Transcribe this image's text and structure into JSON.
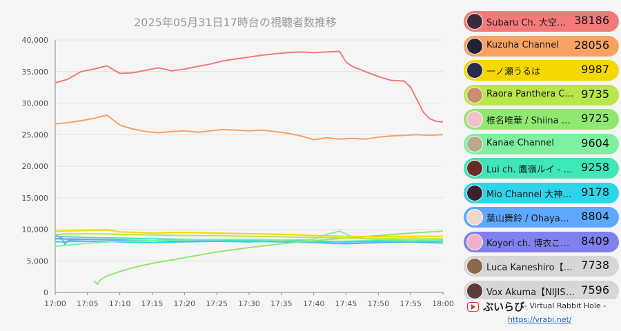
{
  "chart_data": {
    "type": "line",
    "title": "2025年05月31日17時台の視聴者数推移",
    "x_ticks": [
      "17:00",
      "17:05",
      "17:10",
      "17:15",
      "17:20",
      "17:25",
      "17:30",
      "17:35",
      "17:40",
      "17:45",
      "17:50",
      "17:55",
      "18:00"
    ],
    "xlim": [
      0,
      60
    ],
    "ylim": [
      0,
      40000
    ],
    "y_ticks": [
      0,
      5000,
      10000,
      15000,
      20000,
      25000,
      30000,
      35000,
      40000
    ],
    "y_tick_labels": [
      "0",
      "5,000",
      "10,000",
      "15,000",
      "20,000",
      "25,000",
      "30,000",
      "35,000",
      "40,000"
    ],
    "grid": true,
    "legend_position": "right",
    "series": [
      {
        "name": "Subaru Ch. 大空スバル",
        "color": "#f47a7a",
        "x": [
          0,
          2,
          4,
          6,
          8,
          10,
          12,
          14,
          16,
          18,
          20,
          22,
          24,
          26,
          28,
          30,
          32,
          34,
          36,
          38,
          40,
          42,
          44,
          45,
          46,
          48,
          50,
          52,
          54,
          55,
          56,
          57,
          58,
          59,
          60
        ],
        "y": [
          33200,
          33800,
          35000,
          35400,
          35900,
          34700,
          34800,
          35200,
          35600,
          35100,
          35400,
          35800,
          36200,
          36700,
          37000,
          37300,
          37600,
          37800,
          38000,
          38100,
          38000,
          38100,
          38200,
          36500,
          35800,
          35000,
          34200,
          33600,
          33500,
          32500,
          30500,
          28500,
          27500,
          27100,
          27000
        ]
      },
      {
        "name": "Kuzuha Channel",
        "color": "#f9a263",
        "x": [
          0,
          2,
          4,
          6,
          8,
          10,
          12,
          14,
          16,
          18,
          20,
          22,
          24,
          26,
          28,
          30,
          32,
          34,
          36,
          38,
          40,
          42,
          44,
          46,
          48,
          50,
          52,
          54,
          56,
          58,
          60
        ],
        "y": [
          26700,
          26900,
          27200,
          27600,
          28100,
          26500,
          25900,
          25500,
          25300,
          25500,
          25600,
          25400,
          25600,
          25800,
          25700,
          25600,
          25700,
          25500,
          25200,
          24800,
          24200,
          24500,
          24300,
          24400,
          24300,
          24600,
          24800,
          24900,
          25000,
          24900,
          25000
        ]
      },
      {
        "name": "一ノ瀬うるは",
        "color": "#f5d800",
        "x": [
          0,
          5,
          8,
          10,
          15,
          20,
          25,
          30,
          35,
          40,
          45,
          50,
          55,
          60
        ],
        "y": [
          9700,
          9800,
          9900,
          9600,
          9400,
          9500,
          9400,
          9300,
          9200,
          9000,
          8900,
          8800,
          8900,
          8900
        ]
      },
      {
        "name": "Raora Panthera Ch. hololive-EN",
        "color": "#b9e64a",
        "x": [
          0,
          5,
          10,
          15,
          20,
          25,
          30,
          35,
          40,
          45,
          50,
          55,
          60
        ],
        "y": [
          9200,
          9300,
          9200,
          9100,
          9000,
          9000,
          8900,
          8800,
          8700,
          8600,
          8500,
          8600,
          8500
        ]
      },
      {
        "name": "椎名唯華 / Shiina Yuika",
        "color": "#8fe870",
        "x": [
          6,
          6.5,
          7,
          8,
          10,
          12,
          15,
          20,
          25,
          30,
          35,
          40,
          45,
          50,
          55,
          60
        ],
        "y": [
          1800,
          1300,
          2000,
          2600,
          3300,
          3900,
          4600,
          5500,
          6400,
          7100,
          7700,
          8200,
          8600,
          9000,
          9400,
          9700
        ]
      },
      {
        "name": "Kanae Channel",
        "color": "#7ef0a0",
        "x": [
          0,
          5,
          10,
          15,
          20,
          25,
          30,
          35,
          40,
          42,
          44,
          46,
          48,
          50,
          55,
          60
        ],
        "y": [
          7300,
          7800,
          8100,
          8200,
          8300,
          8400,
          8400,
          8300,
          8400,
          9200,
          9700,
          8800,
          8500,
          8400,
          8300,
          8300
        ]
      },
      {
        "name": "Lui ch. 鷹嶺ルイ - holoX -",
        "color": "#3ee6b8",
        "x": [
          0,
          5,
          10,
          15,
          20,
          25,
          30,
          35,
          40,
          45,
          50,
          55,
          60
        ],
        "y": [
          8900,
          8700,
          8600,
          8500,
          8400,
          8300,
          8200,
          8100,
          8000,
          8100,
          8200,
          8100,
          8200
        ]
      },
      {
        "name": "Mio Channel 大神ミオ",
        "color": "#2ed4e8",
        "x": [
          0,
          5,
          10,
          15,
          20,
          25,
          30,
          35,
          40,
          45,
          50,
          55,
          60
        ],
        "y": [
          8000,
          8100,
          8000,
          7900,
          8000,
          8100,
          8000,
          8200,
          8100,
          8000,
          8100,
          8000,
          8100
        ]
      },
      {
        "name": "葉山舞鈴 / Ohayama Mairin",
        "color": "#5ea8ff",
        "x": [
          0,
          1,
          1.5,
          2,
          5,
          10,
          15,
          20,
          25,
          30,
          35,
          40,
          45,
          50,
          55,
          60
        ],
        "y": [
          9100,
          8600,
          7600,
          8300,
          8400,
          8300,
          8200,
          8300,
          8200,
          8100,
          8000,
          7900,
          7700,
          7900,
          8000,
          7800
        ]
      },
      {
        "name": "Koyori ch. 博衣こより - holoX -",
        "color": "#8080f0",
        "x": [
          0,
          5,
          10,
          15,
          20,
          25,
          30,
          35,
          40,
          45,
          50,
          55,
          60
        ],
        "y": [
          8500,
          8400,
          8300,
          8200,
          8100,
          8200,
          8300,
          8200,
          8100,
          8000,
          8100,
          8200,
          8300
        ]
      },
      {
        "name": "Luca Kaneshiro【NIJISANJI EN】",
        "color": "#d0d0d0",
        "x": [
          0,
          30,
          60
        ],
        "y": [
          7738,
          7738,
          7738
        ]
      },
      {
        "name": "Vox Akuma【NIJISANJI EN】",
        "color": "#d0d0d0",
        "x": [
          0,
          30,
          60
        ],
        "y": [
          7596,
          7596,
          7596
        ]
      }
    ]
  },
  "legend": [
    {
      "name": "Subaru Ch. 大空スバル",
      "count": "38186",
      "bg": "#f47a7a",
      "avatar": "#3a2a3a"
    },
    {
      "name": "Kuzuha Channel",
      "count": "28056",
      "bg": "#f9a263",
      "avatar": "#222233"
    },
    {
      "name": "一ノ瀬うるは",
      "count": "9987",
      "bg": "#f5d800",
      "avatar": "#2a2a4a"
    },
    {
      "name": "Raora Panthera Ch. hololive-EN",
      "count": "9735",
      "bg": "#b9e64a",
      "avatar": "#c89070"
    },
    {
      "name": "椎名唯華 / Shiina Yuika",
      "count": "9725",
      "bg": "#8fe870",
      "avatar": "#f0c0cc"
    },
    {
      "name": "Kanae Channel",
      "count": "9604",
      "bg": "#7ef0a0",
      "avatar": "#b8a890"
    },
    {
      "name": "Lui ch. 鷹嶺ルイ - holoX -",
      "count": "9258",
      "bg": "#3ee6b8",
      "avatar": "#6a2a2a"
    },
    {
      "name": "Mio Channel 大神ミオ",
      "count": "9178",
      "bg": "#2ed4e8",
      "avatar": "#3a2230"
    },
    {
      "name": "葉山舞鈴 / Ohayama Mairin",
      "count": "8804",
      "bg": "#5ea8ff",
      "avatar": "#f0d8c8"
    },
    {
      "name": "Koyori ch. 博衣こより - holoX -",
      "count": "8409",
      "bg": "#8080f0",
      "avatar": "#f0b0c8"
    },
    {
      "name": "Luca Kaneshiro【NIJISANJI EN】",
      "count": "7738",
      "bg": "#d6d6d6",
      "avatar": "#8a6a4a"
    },
    {
      "name": "Vox Akuma【NIJISANJI EN】",
      "count": "7596",
      "bg": "#d6d6d6",
      "avatar": "#5a3a3a"
    }
  ],
  "footer": {
    "brand": "ぶいらび",
    "subtitle": "- Virtual Rabbit Hole -",
    "url": "https://vrabi.net/",
    "icon": "play-icon",
    "accent": "#e03030"
  }
}
